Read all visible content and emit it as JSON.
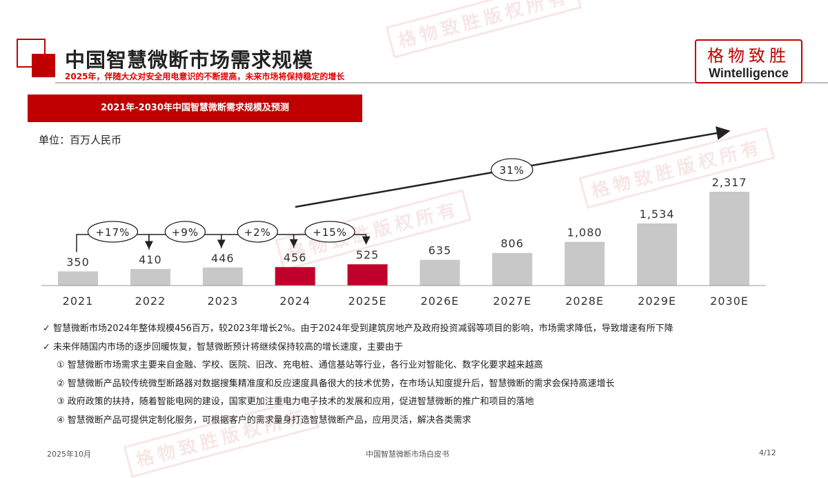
{
  "header": {
    "title": "中国智慧微断市场需求规模",
    "subtitle": "2025年，伴随大众对安全用电意识的不断提高，未来市场将保持稳定的增长"
  },
  "logo": {
    "cn": "格物致胜",
    "en": "Wintelligence"
  },
  "watermark": "格物致胜版权所有",
  "banner": "2021年-2030年中国智慧微断需求规模及预测",
  "unit": "单位：百万人民币",
  "chart_data": {
    "type": "bar",
    "categories": [
      "2021",
      "2022",
      "2023",
      "2024",
      "2025E",
      "2026E",
      "2027E",
      "2028E",
      "2029E",
      "2030E"
    ],
    "values": [
      350,
      410,
      446,
      456,
      525,
      635,
      806,
      1080,
      1534,
      2317
    ],
    "value_labels": [
      "350",
      "410",
      "446",
      "456",
      "525",
      "635",
      "806",
      "1,080",
      "1,534",
      "2,317"
    ],
    "highlight": [
      "2024",
      "2025E"
    ],
    "colors": {
      "default": "#c8c8c8",
      "highlight": "#c0002a"
    },
    "growth": [
      {
        "from": "2021",
        "to": "2022",
        "label": "+17%"
      },
      {
        "from": "2022",
        "to": "2023",
        "label": "+9%"
      },
      {
        "from": "2023",
        "to": "2024",
        "label": "+2%"
      },
      {
        "from": "2024",
        "to": "2025E",
        "label": "+15%"
      }
    ],
    "cagr": {
      "from": "2024",
      "to": "2030E",
      "label": "31%"
    }
  },
  "bullets": [
    "✓ 智慧微断市场2024年整体规模456百万，较2023年增长2%。由于2024年受到建筑房地产及政府投资减弱等项目的影响，市场需求降低，导致增速有所下降",
    "✓ 未来伴随国内市场的逐步回暖恢复，智慧微断预计将继续保持较高的增长速度，主要由于"
  ],
  "reasons": [
    "① 智慧微断市场需求主要来自金融、学校、医院、旧改、充电桩、通信基站等行业，各行业对智能化、数字化要求越来越高",
    "② 智慧微断产品较传统微型断路器对数据搜集精准度和反应速度具备很大的技术优势，在市场认知度提升后，智慧微断的需求会保持高速增长",
    "③ 政府政策的扶持，随着智能电网的建设，国家更加注重电力电子技术的发展和应用，促进智慧微断的推广和项目的落地",
    "④ 智慧微断产品可提供定制化服务，可根据客户的需求量身打造智慧微断产品，应用灵活，解决各类需求"
  ],
  "footer": {
    "date": "2025年10月",
    "doc": "中国智慧微断市场白皮书",
    "page": "4/12"
  }
}
